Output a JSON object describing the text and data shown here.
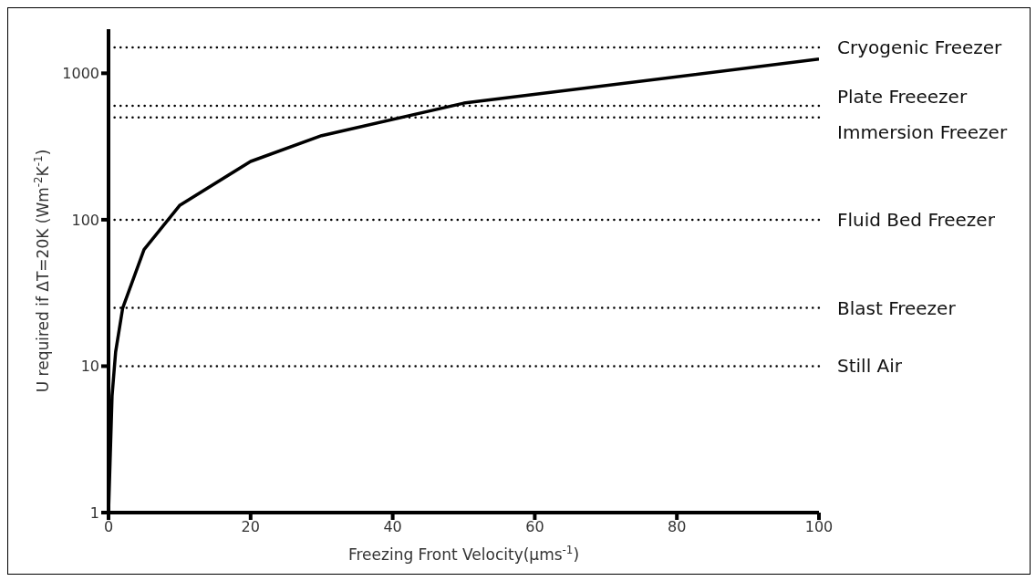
{
  "chart_data": {
    "type": "line",
    "xlabel": "Freezing Front Velocity(μms$^{-1}$)",
    "ylabel": "U required if ΔT=20K (Wm$^{-2}$K$^{-1}$)",
    "x": [
      0,
      0.5,
      1,
      2,
      5,
      10,
      20,
      30,
      50,
      100
    ],
    "series": [
      {
        "color": "#000000",
        "values": [
          1,
          6.25,
          12.5,
          25,
          62.5,
          125,
          250,
          375,
          625,
          1250
        ]
      }
    ],
    "xlim": [
      0,
      100
    ],
    "xticks": [
      0,
      20,
      40,
      60,
      80,
      100
    ],
    "ylim": [
      1,
      2000
    ],
    "yticks": [
      1,
      10,
      100,
      1000
    ],
    "log": "y",
    "grid": false,
    "legend": false,
    "marker": "none",
    "line_style": "solid",
    "ref_lines": [
      {
        "axis": "y",
        "value": 1500,
        "label": "Cryogenic Freezer",
        "line_style": "dotted",
        "color": "#000000"
      },
      {
        "axis": "y",
        "value": 600,
        "label": "Plate Freeezer",
        "line_style": "dotted",
        "color": "#000000"
      },
      {
        "axis": "y",
        "value": 500,
        "label": "Immersion Freezer",
        "line_style": "dotted",
        "color": "#000000"
      },
      {
        "axis": "y",
        "value": 100,
        "label": "Fluid Bed Freezer",
        "line_style": "dotted",
        "color": "#000000"
      },
      {
        "axis": "y",
        "value": 25,
        "label": "Blast Freezer",
        "line_style": "dotted",
        "color": "#000000"
      },
      {
        "axis": "y",
        "value": 10,
        "label": "Still Air",
        "line_style": "dotted",
        "color": "#000000"
      }
    ]
  }
}
